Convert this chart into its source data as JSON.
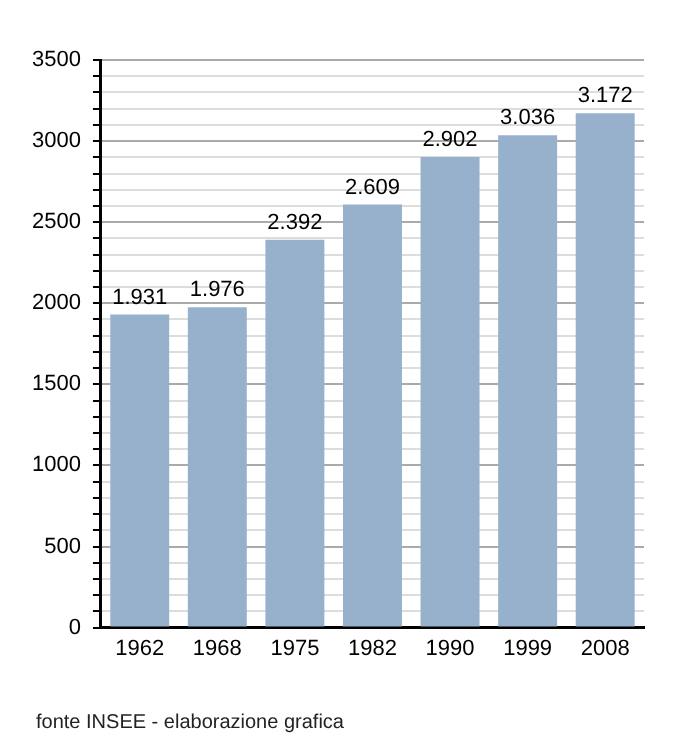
{
  "chart_data": {
    "type": "bar",
    "categories": [
      "1962",
      "1968",
      "1975",
      "1982",
      "1990",
      "1999",
      "2008"
    ],
    "values": [
      1931,
      1976,
      2392,
      2609,
      2902,
      3036,
      3172
    ],
    "value_labels": [
      "1.931",
      "1.976",
      "2.392",
      "2.609",
      "2.902",
      "3.036",
      "3.172"
    ],
    "color": "#97b1cc",
    "ylim": [
      0,
      3500
    ],
    "yticks": [
      0,
      {
        "value": 100,
        "label": null
      },
      {
        "value": 200,
        "label": null
      },
      {
        "value": 300,
        "label": null
      },
      {
        "value": 400,
        "label": null
      },
      500,
      {
        "value": 600,
        "label": null
      },
      {
        "value": 700,
        "label": null
      },
      {
        "value": 800,
        "label": null
      },
      {
        "value": 900,
        "label": null
      },
      1000,
      {
        "value": 1100,
        "label": null
      },
      {
        "value": 1200,
        "label": null
      },
      {
        "value": 1300,
        "label": null
      },
      {
        "value": 1400,
        "label": null
      },
      1500,
      {
        "value": 1600,
        "label": null
      },
      {
        "value": 1700,
        "label": null
      },
      {
        "value": 1800,
        "label": null
      },
      {
        "value": 1900,
        "label": null
      },
      2000,
      {
        "value": 2100,
        "label": null
      },
      {
        "value": 2200,
        "label": null
      },
      {
        "value": 2300,
        "label": null
      },
      {
        "value": 2400,
        "label": null
      },
      2500,
      {
        "value": 2600,
        "label": null
      },
      {
        "value": 2700,
        "label": null
      },
      {
        "value": 2800,
        "label": null
      },
      {
        "value": 2900,
        "label": null
      },
      3000,
      {
        "value": 3100,
        "label": null
      },
      {
        "value": 3200,
        "label": null
      },
      {
        "value": 3300,
        "label": null
      },
      {
        "value": 3400,
        "label": null
      },
      3500
    ],
    "grid": "y",
    "legend": false,
    "annotations": [
      "fonte INSEE - elaborazione grafica"
    ]
  }
}
